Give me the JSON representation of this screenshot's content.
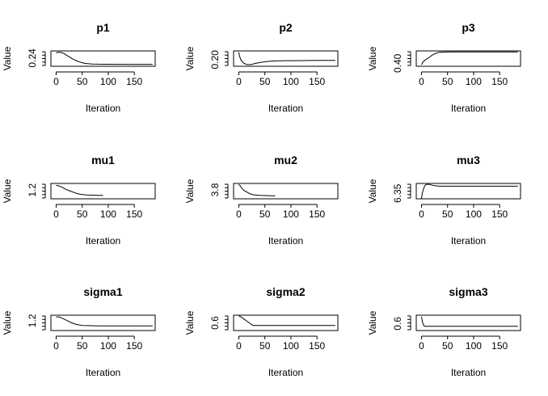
{
  "chart_data": [
    {
      "type": "line",
      "title": "p1",
      "xlabel": "Iteration",
      "ylabel": "Value",
      "xlim": [
        -10,
        190
      ],
      "ylim": [
        0.215,
        0.262
      ],
      "x_ticks": [
        0,
        50,
        100,
        150
      ],
      "y_tick_label": "0.24",
      "y_tick_value": 0.24,
      "points": [
        [
          0,
          0.256
        ],
        [
          5,
          0.258
        ],
        [
          10,
          0.257
        ],
        [
          15,
          0.254
        ],
        [
          20,
          0.249
        ],
        [
          25,
          0.244
        ],
        [
          30,
          0.239
        ],
        [
          35,
          0.235
        ],
        [
          40,
          0.231
        ],
        [
          45,
          0.228
        ],
        [
          50,
          0.226
        ],
        [
          55,
          0.224
        ],
        [
          60,
          0.223
        ],
        [
          70,
          0.222
        ],
        [
          80,
          0.2215
        ],
        [
          100,
          0.2212
        ],
        [
          130,
          0.221
        ],
        [
          160,
          0.221
        ],
        [
          185,
          0.221
        ]
      ]
    },
    {
      "type": "line",
      "title": "p2",
      "xlabel": "Iteration",
      "ylabel": "Value",
      "xlim": [
        -10,
        190
      ],
      "ylim": [
        0.175,
        0.233
      ],
      "x_ticks": [
        0,
        50,
        100,
        150
      ],
      "y_tick_label": "0.20",
      "y_tick_value": 0.2,
      "points": [
        [
          0,
          0.228
        ],
        [
          2,
          0.21
        ],
        [
          5,
          0.195
        ],
        [
          10,
          0.186
        ],
        [
          15,
          0.182
        ],
        [
          20,
          0.181
        ],
        [
          25,
          0.182
        ],
        [
          30,
          0.185
        ],
        [
          40,
          0.189
        ],
        [
          50,
          0.192
        ],
        [
          60,
          0.194
        ],
        [
          70,
          0.195
        ],
        [
          90,
          0.196
        ],
        [
          120,
          0.1965
        ],
        [
          150,
          0.197
        ],
        [
          185,
          0.197
        ]
      ]
    },
    {
      "type": "line",
      "title": "p3",
      "xlabel": "Iteration",
      "ylabel": "Value",
      "xlim": [
        -10,
        190
      ],
      "ylim": [
        0.36,
        0.57
      ],
      "x_ticks": [
        0,
        50,
        100,
        150
      ],
      "y_tick_label": "0.40",
      "y_tick_value": 0.4,
      "points": [
        [
          0,
          0.38
        ],
        [
          3,
          0.42
        ],
        [
          6,
          0.44
        ],
        [
          10,
          0.46
        ],
        [
          15,
          0.48
        ],
        [
          20,
          0.51
        ],
        [
          25,
          0.53
        ],
        [
          30,
          0.545
        ],
        [
          35,
          0.552
        ],
        [
          45,
          0.555
        ],
        [
          60,
          0.556
        ],
        [
          100,
          0.556
        ],
        [
          185,
          0.556
        ]
      ]
    },
    {
      "type": "line",
      "title": "mu1",
      "xlabel": "Iteration",
      "ylabel": "Value",
      "xlim": [
        -10,
        190
      ],
      "ylim": [
        1.02,
        1.34
      ],
      "x_ticks": [
        0,
        50,
        100,
        150
      ],
      "y_tick_label": "1.2",
      "y_tick_value": 1.2,
      "points": [
        [
          0,
          1.3
        ],
        [
          5,
          1.29
        ],
        [
          10,
          1.27
        ],
        [
          15,
          1.24
        ],
        [
          20,
          1.21
        ],
        [
          25,
          1.19
        ],
        [
          30,
          1.17
        ],
        [
          35,
          1.15
        ],
        [
          40,
          1.13
        ],
        [
          45,
          1.12
        ],
        [
          50,
          1.11
        ],
        [
          60,
          1.1
        ],
        [
          70,
          1.095
        ],
        [
          80,
          1.09
        ],
        [
          90,
          1.09
        ]
      ]
    },
    {
      "type": "line",
      "title": "mu2",
      "xlabel": "Iteration",
      "ylabel": "Value",
      "xlim": [
        -10,
        190
      ],
      "ylim": [
        3.62,
        3.93
      ],
      "x_ticks": [
        0,
        50,
        100,
        150
      ],
      "y_tick_label": "3.8",
      "y_tick_value": 3.8,
      "points": [
        [
          0,
          3.91
        ],
        [
          3,
          3.88
        ],
        [
          6,
          3.83
        ],
        [
          10,
          3.79
        ],
        [
          15,
          3.76
        ],
        [
          20,
          3.73
        ],
        [
          25,
          3.71
        ],
        [
          30,
          3.7
        ],
        [
          40,
          3.69
        ],
        [
          50,
          3.685
        ],
        [
          60,
          3.68
        ],
        [
          70,
          3.68
        ]
      ]
    },
    {
      "type": "line",
      "title": "mu3",
      "xlabel": "Iteration",
      "ylabel": "Value",
      "xlim": [
        -10,
        190
      ],
      "ylim": [
        6.338,
        6.372
      ],
      "x_ticks": [
        0,
        50,
        100,
        150
      ],
      "y_tick_label": "6.35",
      "y_tick_value": 6.35,
      "points": [
        [
          0,
          6.339
        ],
        [
          2,
          6.352
        ],
        [
          4,
          6.36
        ],
        [
          6,
          6.366
        ],
        [
          8,
          6.369
        ],
        [
          10,
          6.37
        ],
        [
          14,
          6.37
        ],
        [
          18,
          6.369
        ],
        [
          25,
          6.367
        ],
        [
          35,
          6.366
        ],
        [
          60,
          6.366
        ],
        [
          185,
          6.366
        ]
      ]
    },
    {
      "type": "line",
      "title": "sigma1",
      "xlabel": "Iteration",
      "ylabel": "Value",
      "xlim": [
        -10,
        190
      ],
      "ylim": [
        0.97,
        1.33
      ],
      "x_ticks": [
        0,
        50,
        100,
        150
      ],
      "y_tick_label": "1.2",
      "y_tick_value": 1.2,
      "points": [
        [
          0,
          1.29
        ],
        [
          5,
          1.29
        ],
        [
          10,
          1.27
        ],
        [
          15,
          1.24
        ],
        [
          20,
          1.21
        ],
        [
          25,
          1.18
        ],
        [
          30,
          1.15
        ],
        [
          35,
          1.13
        ],
        [
          40,
          1.11
        ],
        [
          45,
          1.1
        ],
        [
          50,
          1.09
        ],
        [
          60,
          1.085
        ],
        [
          80,
          1.08
        ],
        [
          120,
          1.08
        ],
        [
          185,
          1.08
        ]
      ]
    },
    {
      "type": "line",
      "title": "sigma2",
      "xlabel": "Iteration",
      "ylabel": "Value",
      "xlim": [
        -10,
        190
      ],
      "ylim": [
        0.48,
        0.72
      ],
      "x_ticks": [
        0,
        50,
        100,
        150
      ],
      "y_tick_label": "0.6",
      "y_tick_value": 0.6,
      "points": [
        [
          0,
          0.71
        ],
        [
          5,
          0.69
        ],
        [
          10,
          0.66
        ],
        [
          15,
          0.63
        ],
        [
          20,
          0.6
        ],
        [
          25,
          0.57
        ],
        [
          28,
          0.56
        ],
        [
          32,
          0.56
        ],
        [
          50,
          0.56
        ],
        [
          100,
          0.56
        ],
        [
          185,
          0.56
        ]
      ]
    },
    {
      "type": "line",
      "title": "sigma3",
      "xlabel": "Iteration",
      "ylabel": "Value",
      "xlim": [
        -10,
        190
      ],
      "ylim": [
        0.5,
        0.72
      ],
      "x_ticks": [
        0,
        50,
        100,
        150
      ],
      "y_tick_label": "0.6",
      "y_tick_value": 0.6,
      "points": [
        [
          0,
          0.7
        ],
        [
          2,
          0.62
        ],
        [
          4,
          0.58
        ],
        [
          6,
          0.56
        ],
        [
          10,
          0.56
        ],
        [
          50,
          0.56
        ],
        [
          185,
          0.56
        ]
      ]
    }
  ]
}
